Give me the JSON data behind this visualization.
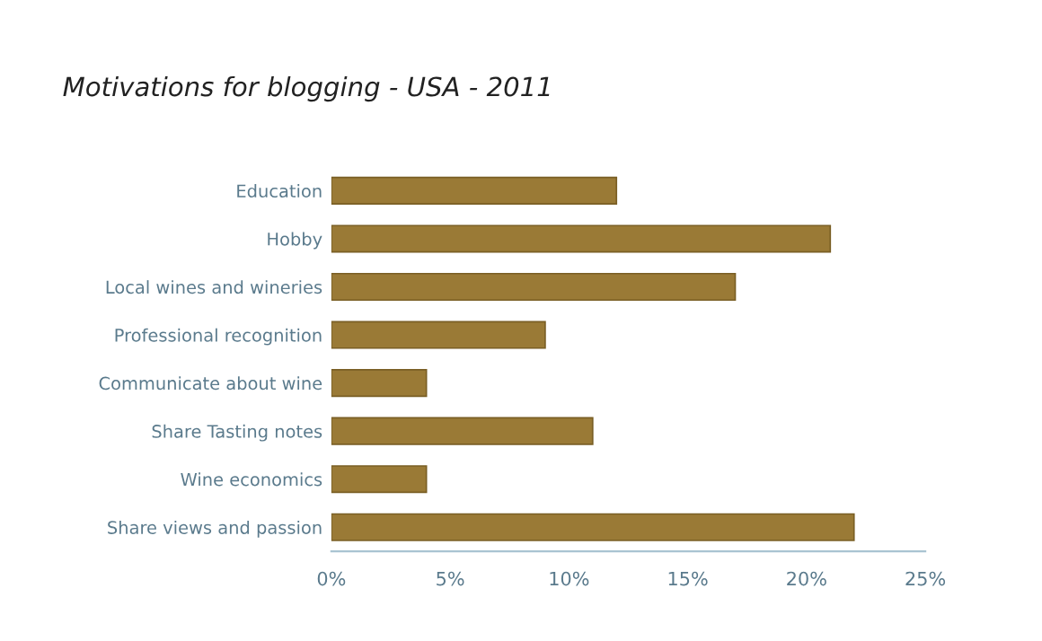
{
  "chart_data": {
    "type": "bar",
    "orientation": "horizontal",
    "title": "Motivations for blogging - USA - 2011",
    "categories": [
      "Education",
      "Hobby",
      "Local wines and wineries",
      "Professional recognition",
      "Communicate about wine",
      "Share Tasting notes",
      "Wine economics",
      "Share views and passion"
    ],
    "values": [
      12,
      21,
      17,
      9,
      4,
      11,
      4,
      22
    ],
    "color": "#9a7a36",
    "xlim": [
      0,
      25
    ],
    "xticks": [
      {
        "value": 0,
        "label": "0%"
      },
      {
        "value": 5,
        "label": "5%"
      },
      {
        "value": 10,
        "label": "10%"
      },
      {
        "value": 15,
        "label": "15%"
      },
      {
        "value": 20,
        "label": "20%"
      },
      {
        "value": 25,
        "label": "25%"
      }
    ],
    "grid": false
  }
}
